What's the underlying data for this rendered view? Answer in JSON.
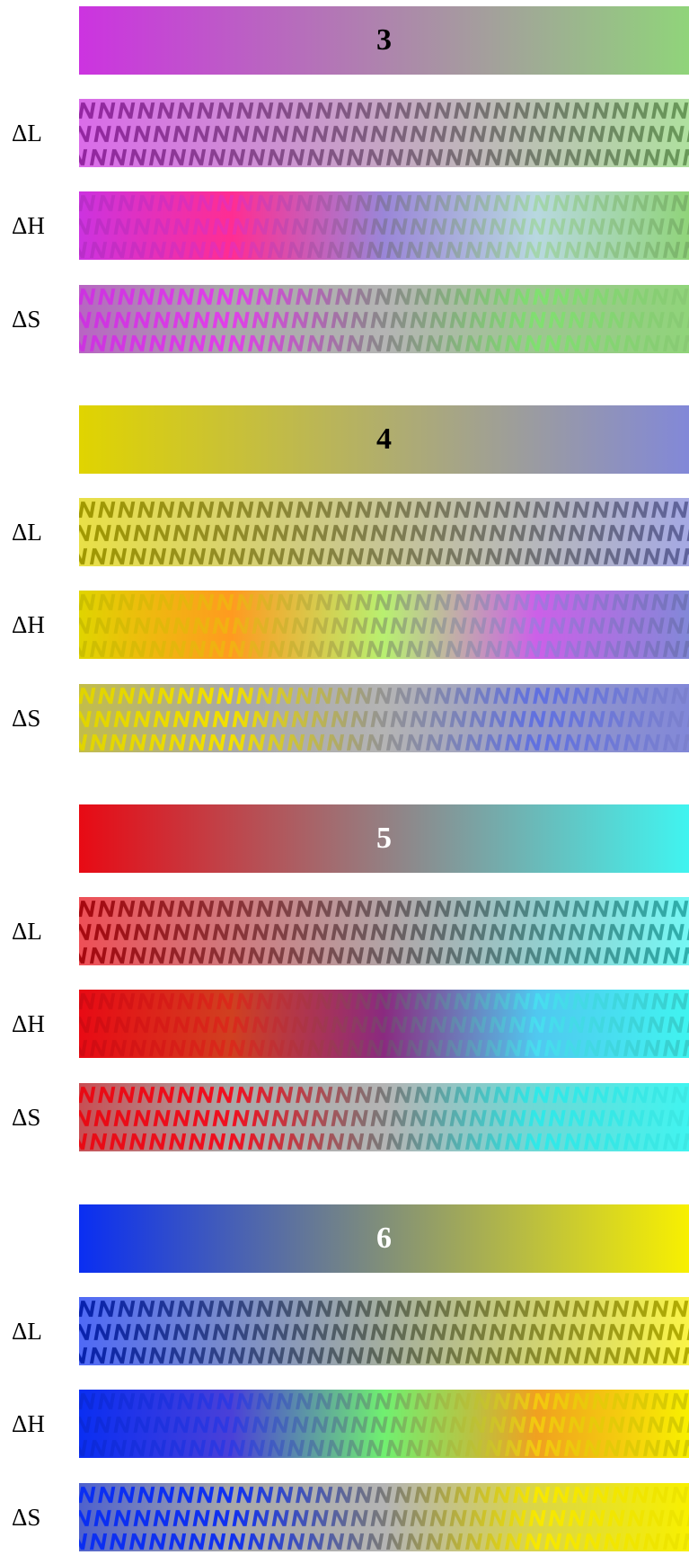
{
  "row_labels": {
    "lightness": "ΔL",
    "hue": "ΔH",
    "saturation": "ΔS"
  },
  "pattern_glyph": "N",
  "groups": [
    {
      "number": "3",
      "number_color": "#000000",
      "start_color": "#cc33e0",
      "end_color": "#90d47a",
      "hue_mid": [
        "#ff2d92",
        "#9a86d8",
        "#b8d8e0"
      ],
      "sat_mid": [
        "#e040e8",
        "#a0a0a0",
        "#80e070"
      ]
    },
    {
      "number": "4",
      "number_color": "#000000",
      "start_color": "#e0d400",
      "end_color": "#8288d8",
      "hue_mid": [
        "#ff9a20",
        "#b8f070",
        "#cc60e8"
      ],
      "sat_mid": [
        "#f2e000",
        "#b0b0b0",
        "#6070e0"
      ]
    },
    {
      "number": "5",
      "number_color": "#ffffff",
      "start_color": "#e80a14",
      "end_color": "#40f4f0",
      "hue_mid": [
        "#d04020",
        "#8a2a80",
        "#50c8f0"
      ],
      "sat_mid": [
        "#f01020",
        "#8a8a8a",
        "#30e8e8"
      ]
    },
    {
      "number": "6",
      "number_color": "#ffffff",
      "start_color": "#0a2ef2",
      "end_color": "#f8f000",
      "hue_mid": [
        "#4a40d8",
        "#70f070",
        "#f0a020"
      ],
      "sat_mid": [
        "#1030f0",
        "#8a8a8a",
        "#f8e800"
      ]
    }
  ]
}
